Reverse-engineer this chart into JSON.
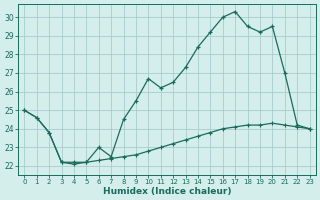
{
  "xlabel": "Humidex (Indice chaleur)",
  "background_color": "#d4eeec",
  "line_color": "#1a6b5a",
  "grid_color": "#aacccc",
  "xlim": [
    -0.5,
    23.5
  ],
  "ylim": [
    21.5,
    30.7
  ],
  "yticks": [
    22,
    23,
    24,
    25,
    26,
    27,
    28,
    29,
    30
  ],
  "xticks": [
    0,
    1,
    2,
    3,
    4,
    5,
    6,
    7,
    8,
    9,
    10,
    11,
    12,
    13,
    14,
    15,
    16,
    17,
    18,
    19,
    20,
    21,
    22,
    23
  ],
  "line_upper_x": [
    0,
    1,
    2,
    3,
    4,
    5,
    6,
    7,
    8,
    9,
    10,
    11,
    12,
    13,
    14,
    15,
    16,
    17,
    18,
    19,
    20,
    21,
    22,
    23
  ],
  "line_upper_y": [
    25.0,
    24.6,
    23.8,
    22.2,
    22.2,
    22.2,
    23.0,
    22.5,
    24.5,
    25.5,
    26.7,
    26.2,
    26.5,
    27.3,
    28.4,
    29.2,
    30.0,
    30.3,
    29.5,
    29.2,
    29.5,
    27.0,
    24.2,
    24.0
  ],
  "line_lower_x": [
    0,
    1,
    2,
    3,
    4,
    5,
    6,
    7,
    8,
    9,
    10,
    11,
    12,
    13,
    14,
    15,
    16,
    17,
    18,
    19,
    20,
    21,
    22,
    23
  ],
  "line_lower_y": [
    25.0,
    24.6,
    23.8,
    22.2,
    22.1,
    22.2,
    22.3,
    22.4,
    22.5,
    22.6,
    22.8,
    23.0,
    23.2,
    23.4,
    23.6,
    23.8,
    24.0,
    24.1,
    24.2,
    24.2,
    24.3,
    24.2,
    24.1,
    24.0
  ]
}
